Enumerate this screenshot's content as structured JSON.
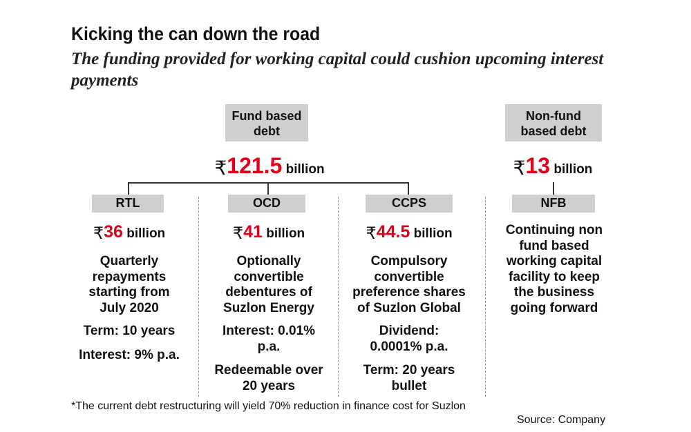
{
  "header": {
    "title": "Kicking the can down the road",
    "subtitle": "The funding provided for working capital could cushion upcoming interest payments"
  },
  "fund_based": {
    "label": "Fund based debt",
    "label_line1": "Fund based",
    "label_line2": "debt",
    "currency": "₹",
    "amount": "121.5",
    "unit": "billion"
  },
  "non_fund_based": {
    "label_line1": "Non-fund",
    "label_line2": "based debt",
    "currency": "₹",
    "amount": "13",
    "unit": "billion"
  },
  "columns": [
    {
      "tag": "RTL",
      "currency": "₹",
      "amount": "36",
      "unit": "billion",
      "desc": [
        "Quarterly",
        "repayments",
        "starting from",
        "July 2020"
      ],
      "notes": [
        [
          "Term: 10 years"
        ],
        [
          "Interest: 9% p.a."
        ]
      ]
    },
    {
      "tag": "OCD",
      "currency": "₹",
      "amount": "41",
      "unit": "billion",
      "desc": [
        "Optionally",
        "convertible",
        "debentures of",
        "Suzlon Energy"
      ],
      "notes": [
        [
          "Interest: 0.01%",
          "p.a."
        ],
        [
          "Redeemable over",
          "20 years"
        ]
      ]
    },
    {
      "tag": "CCPS",
      "currency": "₹",
      "amount": "44.5",
      "unit": "billion",
      "desc": [
        "Compulsory",
        "convertible",
        "preference shares",
        "of Suzlon Global"
      ],
      "notes": [
        [
          "Dividend:",
          "0.0001% p.a."
        ],
        [
          "Term: 20 years",
          "bullet"
        ]
      ]
    },
    {
      "tag": "NFB",
      "desc": [
        "Continuing non",
        "fund based",
        "working capital",
        "facility to keep",
        "the business",
        "going forward"
      ]
    }
  ],
  "footnote": "*The current debt restructuring will yield 70% reduction in finance cost for Suzlon",
  "source": "Source: Company",
  "colors": {
    "accent": "#e3001b",
    "box": "#cfcfcf"
  }
}
